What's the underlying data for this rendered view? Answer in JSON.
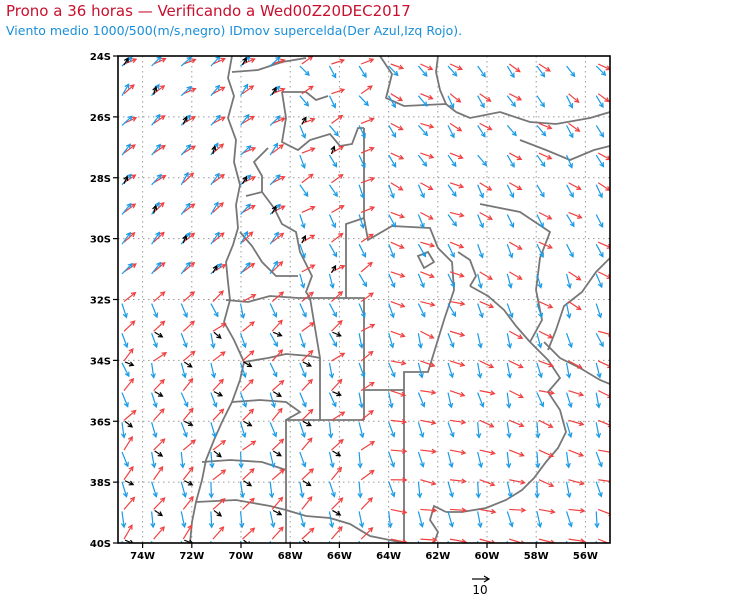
{
  "header": {
    "title": "Prono a 36 horas — Verificando a Wed00Z20DEC2017",
    "subtitle": "Viento medio 1000/500(m/s,negro) IDmov supercelda(Der Azul,Izq Rojo)."
  },
  "map": {
    "lat_labels": [
      "24S",
      "26S",
      "28S",
      "30S",
      "32S",
      "34S",
      "36S",
      "38S",
      "40S"
    ],
    "lon_labels": [
      "74W",
      "72W",
      "70W",
      "68W",
      "66W",
      "64W",
      "62W",
      "60W",
      "58W",
      "56W"
    ],
    "lat_range": [
      -40,
      -24
    ],
    "lon_range": [
      -75,
      -55
    ],
    "grid": "dotted",
    "vector_colors": {
      "mean_wind": "#000000",
      "right_mover": "#1a9be6",
      "left_mover": "#f04040"
    },
    "border_color": "#777777"
  },
  "legend": {
    "reference_value": "10"
  }
}
